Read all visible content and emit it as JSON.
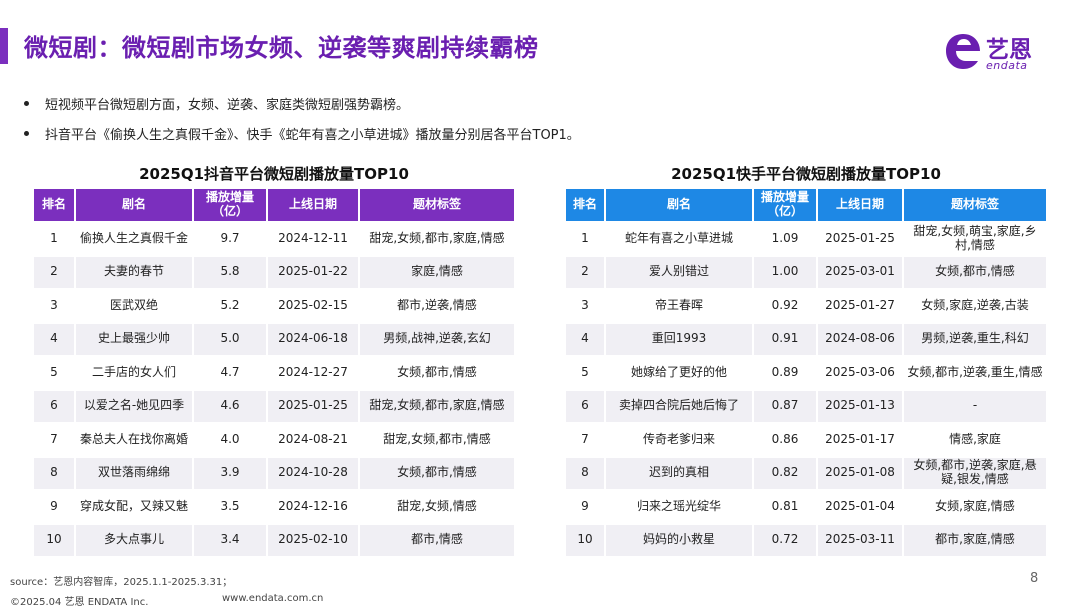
{
  "title": "微短剧：微短剧市场女频、逆袭等爽剧持续霸榜",
  "logo": {
    "cn": "艺恩",
    "en": "endata"
  },
  "bullets": [
    "短视频平台微短剧方面，女频、逆袭、家庭类微短剧强势霸榜。",
    "抖音平台《偷换人生之真假千金》、快手《蛇年有喜之小草进城》播放量分别居各平台TOP1。"
  ],
  "douyin": {
    "title": "2025Q1抖音平台微短剧播放量TOP10",
    "headers": [
      "排名",
      "剧名",
      "播放增量（亿）",
      "上线日期",
      "题材标签"
    ],
    "rows": [
      [
        "1",
        "偷换人生之真假千金",
        "9.7",
        "2024-12-11",
        "甜宠,女频,都市,家庭,情感"
      ],
      [
        "2",
        "夫妻的春节",
        "5.8",
        "2025-01-22",
        "家庭,情感"
      ],
      [
        "3",
        "医武双绝",
        "5.2",
        "2025-02-15",
        "都市,逆袭,情感"
      ],
      [
        "4",
        "史上最强少帅",
        "5.0",
        "2024-06-18",
        "男频,战神,逆袭,玄幻"
      ],
      [
        "5",
        "二手店的女人们",
        "4.7",
        "2024-12-27",
        "女频,都市,情感"
      ],
      [
        "6",
        "以爱之名-她见四季",
        "4.6",
        "2025-01-25",
        "甜宠,女频,都市,家庭,情感"
      ],
      [
        "7",
        "秦总夫人在找你离婚",
        "4.0",
        "2024-08-21",
        "甜宠,女频,都市,情感"
      ],
      [
        "8",
        "双世落雨绵绵",
        "3.9",
        "2024-10-28",
        "女频,都市,情感"
      ],
      [
        "9",
        "穿成女配，又辣又魅",
        "3.5",
        "2024-12-16",
        "甜宠,女频,情感"
      ],
      [
        "10",
        "多大点事儿",
        "3.4",
        "2025-02-10",
        "都市,情感"
      ]
    ]
  },
  "kuaishou": {
    "title": "2025Q1快手平台微短剧播放量TOP10",
    "headers": [
      "排名",
      "剧名",
      "播放增量（亿）",
      "上线日期",
      "题材标签"
    ],
    "rows": [
      [
        "1",
        "蛇年有喜之小草进城",
        "1.09",
        "2025-01-25",
        "甜宠,女频,萌宝,家庭,乡村,情感"
      ],
      [
        "2",
        "爱人别错过",
        "1.00",
        "2025-03-01",
        "女频,都市,情感"
      ],
      [
        "3",
        "帝王春晖",
        "0.92",
        "2025-01-27",
        "女频,家庭,逆袭,古装"
      ],
      [
        "4",
        "重回1993",
        "0.91",
        "2024-08-06",
        "男频,逆袭,重生,科幻"
      ],
      [
        "5",
        "她嫁给了更好的他",
        "0.89",
        "2025-03-06",
        "女频,都市,逆袭,重生,情感"
      ],
      [
        "6",
        "卖掉四合院后她后悔了",
        "0.87",
        "2025-01-13",
        "-"
      ],
      [
        "7",
        "传奇老爹归来",
        "0.86",
        "2025-01-17",
        "情感,家庭"
      ],
      [
        "8",
        "迟到的真相",
        "0.82",
        "2025-01-08",
        "女频,都市,逆袭,家庭,悬疑,银发,情感"
      ],
      [
        "9",
        "归来之瑶光绽华",
        "0.81",
        "2025-01-04",
        "女频,家庭,情感"
      ],
      [
        "10",
        "妈妈的小救星",
        "0.72",
        "2025-03-11",
        "都市,家庭,情感"
      ]
    ]
  },
  "footer": {
    "source": "source：艺恩内容智库，2025.1.1-2025.3.31；",
    "copyright": "©2025.04 艺恩 ENDATA Inc.",
    "url": "www.endata.com.cn",
    "page": "8"
  },
  "colors": {
    "purple": "#7b2fbe",
    "blue": "#1e88e5"
  }
}
